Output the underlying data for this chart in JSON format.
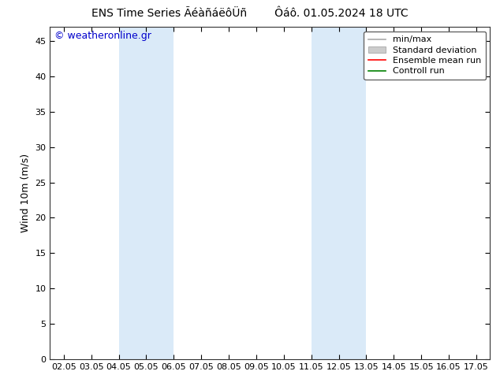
{
  "title_left": "ENS Time Series ÃéàñáëôÜñ",
  "title_right": "Ôáô. 01.05.2024 18 UTC",
  "ylabel": "Wind 10m (m/s)",
  "watermark": "© weatheronline.gr",
  "watermark_color": "#0000cc",
  "background_color": "#ffffff",
  "band_color": "#daeaf8",
  "plot_bg": "#ffffff",
  "ylim": [
    0,
    47
  ],
  "yticks": [
    0,
    5,
    10,
    15,
    20,
    25,
    30,
    35,
    40,
    45
  ],
  "x_labels": [
    "02.05",
    "03.05",
    "04.05",
    "05.05",
    "06.05",
    "07.05",
    "08.05",
    "09.05",
    "10.05",
    "11.05",
    "12.05",
    "13.05",
    "14.05",
    "15.05",
    "16.05",
    "17.05"
  ],
  "shade_bands_labels": [
    "04.05",
    "06.05",
    "11.05",
    "13.05"
  ],
  "legend_items": [
    {
      "label": "min/max",
      "color": "#aaaaaa",
      "lw": 1.2,
      "style": "line"
    },
    {
      "label": "Standard deviation",
      "color": "#cccccc",
      "style": "fill"
    },
    {
      "label": "Ensemble mean run",
      "color": "#ff0000",
      "lw": 1.2,
      "style": "line"
    },
    {
      "label": "Controll run",
      "color": "#008000",
      "lw": 1.2,
      "style": "line"
    }
  ],
  "title_fontsize": 10,
  "axis_fontsize": 9,
  "tick_fontsize": 8,
  "watermark_fontsize": 9,
  "legend_fontsize": 8,
  "fig_width": 6.34,
  "fig_height": 4.9,
  "fig_dpi": 100
}
